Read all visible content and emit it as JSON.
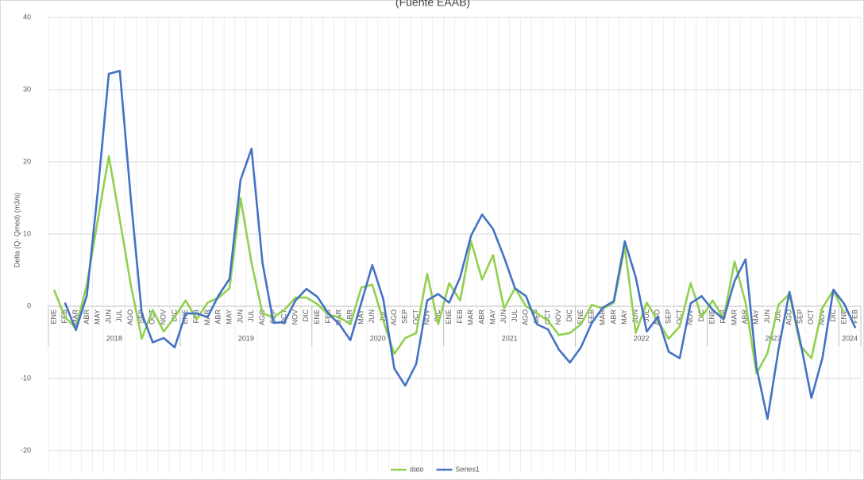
{
  "chart_data": {
    "type": "line",
    "title": "(Fuente EAAB)",
    "y_label": "Delta (Q- Qmed) (m3/s)",
    "categories": [
      "ENE",
      "FEB",
      "MAR",
      "ABR",
      "MAY",
      "JUN",
      "JUL",
      "AGO",
      "SEP",
      "OCT",
      "NOV",
      "DIC",
      "ENE",
      "FEB",
      "MAR",
      "ABR",
      "MAY",
      "JUN",
      "JUL",
      "AGO",
      "SEP",
      "OCT",
      "NOV",
      "DIC",
      "ENE",
      "FEB",
      "MAR",
      "ABR",
      "MAY",
      "JUN",
      "JUL",
      "AGO",
      "SEP",
      "OCT",
      "NOV",
      "DIC",
      "ENE",
      "FEB",
      "MAR",
      "ABR",
      "MAY",
      "JUN",
      "JUL",
      "AGO",
      "SEP",
      "OCT",
      "NOV",
      "DIC",
      "ENE",
      "FEB",
      "MAR",
      "ABR",
      "MAY",
      "JUN",
      "JUL",
      "AGO",
      "SEP",
      "OCT",
      "NOV",
      "DIC",
      "ENE",
      "FEB",
      "MAR",
      "ABR",
      "MAY",
      "JUN",
      "JUL",
      "AGO",
      "SEP",
      "OCT",
      "NOV",
      "DIC",
      "ENE",
      "FEB"
    ],
    "category_groups": [
      {
        "label": "2018",
        "size": 12
      },
      {
        "label": "2019",
        "size": 12
      },
      {
        "label": "2020",
        "size": 12
      },
      {
        "label": "2021",
        "size": 12
      },
      {
        "label": "2022",
        "size": 12
      },
      {
        "label": "2023",
        "size": 12
      },
      {
        "label": "2024",
        "size": 2
      }
    ],
    "series": [
      {
        "name": "dato",
        "color": "#92d050",
        "values": [
          2.3,
          -1.5,
          -3,
          3,
          12,
          20.8,
          12,
          3,
          -4.5,
          -0.5,
          -3.5,
          -1.5,
          0.8,
          -1.8,
          0.5,
          1.2,
          2.5,
          15,
          6,
          -1,
          -1.5,
          -0.5,
          1.2,
          1.2,
          0.3,
          -1.2,
          -1.5,
          -2.5,
          2.6,
          3,
          -2,
          -6.6,
          -4.4,
          -3.7,
          4.5,
          -2.5,
          3.2,
          0.8,
          9,
          3.7,
          7.1,
          -0.3,
          2.5,
          0,
          -1,
          -2,
          -4,
          -3.7,
          -2.5,
          0.2,
          -0.3,
          0.5,
          8.2,
          -3.7,
          0.5,
          -2,
          -4.5,
          -2.8,
          3.2,
          -1.5,
          0.8,
          -1.7,
          6.2,
          0.5,
          -9.3,
          -6.5,
          0.2,
          1.7,
          -5.5,
          -7.2,
          -0.2,
          2.2,
          -1,
          null
        ]
      },
      {
        "name": "Series1",
        "color": "#4472c4",
        "values": [
          null,
          0.5,
          -3.3,
          1.5,
          16,
          32.2,
          32.6,
          15,
          -1,
          -5,
          -4.4,
          -5.7,
          -1,
          -1,
          -1.5,
          1.5,
          3.8,
          17.5,
          21.8,
          6,
          -2.3,
          -2.2,
          0.8,
          2.4,
          1.3,
          -1,
          -2.5,
          -4.7,
          0.5,
          5.7,
          1,
          -8.6,
          -11,
          -8,
          0.8,
          1.7,
          0.5,
          4,
          9.8,
          12.7,
          10.7,
          6.8,
          2.5,
          1.4,
          -2.5,
          -3.2,
          -6,
          -7.8,
          -5.7,
          -2.3,
          -0.2,
          0.7,
          9,
          4,
          -3.5,
          -1.5,
          -6.3,
          -7.2,
          0.4,
          1.4,
          -0.5,
          -1.8,
          3.5,
          6.5,
          -8.5,
          -15.6,
          -6,
          2,
          -5,
          -12.7,
          -7.2,
          2.3,
          0.3,
          -3
        ]
      }
    ],
    "ylim": [
      -23,
      40
    ],
    "yticks": [
      -20,
      -10,
      0,
      10,
      20,
      30,
      40
    ],
    "grid": true,
    "legend": "bottom"
  }
}
